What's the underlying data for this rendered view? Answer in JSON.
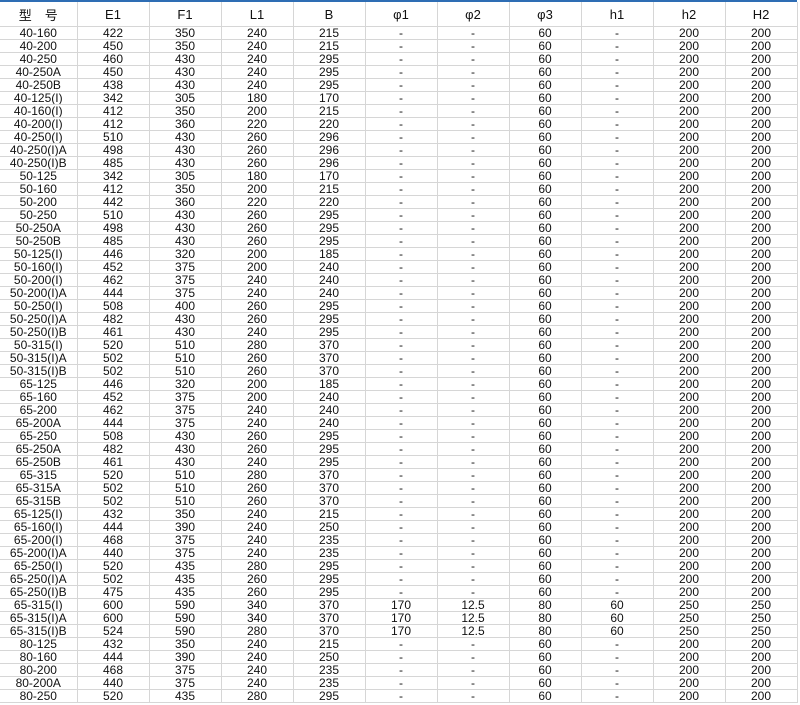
{
  "table": {
    "headers": [
      "型　号",
      "E1",
      "F1",
      "L1",
      "B",
      "φ1",
      "φ2",
      "φ3",
      "h1",
      "h2",
      "H2"
    ],
    "rows": [
      [
        "40-160",
        "422",
        "350",
        "240",
        "215",
        "-",
        "-",
        "60",
        "-",
        "200",
        "200"
      ],
      [
        "40-200",
        "450",
        "350",
        "240",
        "215",
        "-",
        "-",
        "60",
        "-",
        "200",
        "200"
      ],
      [
        "40-250",
        "460",
        "430",
        "240",
        "295",
        "-",
        "-",
        "60",
        "-",
        "200",
        "200"
      ],
      [
        "40-250A",
        "450",
        "430",
        "240",
        "295",
        "-",
        "-",
        "60",
        "-",
        "200",
        "200"
      ],
      [
        "40-250B",
        "438",
        "430",
        "240",
        "295",
        "-",
        "-",
        "60",
        "-",
        "200",
        "200"
      ],
      [
        "40-125(I)",
        "342",
        "305",
        "180",
        "170",
        "-",
        "-",
        "60",
        "-",
        "200",
        "200"
      ],
      [
        "40-160(I)",
        "412",
        "350",
        "200",
        "215",
        "-",
        "-",
        "60",
        "-",
        "200",
        "200"
      ],
      [
        "40-200(I)",
        "412",
        "360",
        "220",
        "220",
        "-",
        "-",
        "60",
        "-",
        "200",
        "200"
      ],
      [
        "40-250(I)",
        "510",
        "430",
        "260",
        "296",
        "-",
        "-",
        "60",
        "-",
        "200",
        "200"
      ],
      [
        "40-250(I)A",
        "498",
        "430",
        "260",
        "296",
        "-",
        "-",
        "60",
        "-",
        "200",
        "200"
      ],
      [
        "40-250(I)B",
        "485",
        "430",
        "260",
        "296",
        "-",
        "-",
        "60",
        "-",
        "200",
        "200"
      ],
      [
        "50-125",
        "342",
        "305",
        "180",
        "170",
        "-",
        "-",
        "60",
        "-",
        "200",
        "200"
      ],
      [
        "50-160",
        "412",
        "350",
        "200",
        "215",
        "-",
        "-",
        "60",
        "-",
        "200",
        "200"
      ],
      [
        "50-200",
        "442",
        "360",
        "220",
        "220",
        "-",
        "-",
        "60",
        "-",
        "200",
        "200"
      ],
      [
        "50-250",
        "510",
        "430",
        "260",
        "295",
        "-",
        "-",
        "60",
        "-",
        "200",
        "200"
      ],
      [
        "50-250A",
        "498",
        "430",
        "260",
        "295",
        "-",
        "-",
        "60",
        "-",
        "200",
        "200"
      ],
      [
        "50-250B",
        "485",
        "430",
        "260",
        "295",
        "-",
        "-",
        "60",
        "-",
        "200",
        "200"
      ],
      [
        "50-125(I)",
        "446",
        "320",
        "200",
        "185",
        "-",
        "-",
        "60",
        "-",
        "200",
        "200"
      ],
      [
        "50-160(I)",
        "452",
        "375",
        "200",
        "240",
        "-",
        "-",
        "60",
        "-",
        "200",
        "200"
      ],
      [
        "50-200(I)",
        "462",
        "375",
        "240",
        "240",
        "-",
        "-",
        "60",
        "-",
        "200",
        "200"
      ],
      [
        "50-200(I)A",
        "444",
        "375",
        "240",
        "240",
        "-",
        "-",
        "60",
        "-",
        "200",
        "200"
      ],
      [
        "50-250(I)",
        "508",
        "400",
        "260",
        "295",
        "-",
        "-",
        "60",
        "-",
        "200",
        "200"
      ],
      [
        "50-250(I)A",
        "482",
        "430",
        "260",
        "295",
        "-",
        "-",
        "60",
        "-",
        "200",
        "200"
      ],
      [
        "50-250(I)B",
        "461",
        "430",
        "240",
        "295",
        "-",
        "-",
        "60",
        "-",
        "200",
        "200"
      ],
      [
        "50-315(I)",
        "520",
        "510",
        "280",
        "370",
        "-",
        "-",
        "60",
        "-",
        "200",
        "200"
      ],
      [
        "50-315(I)A",
        "502",
        "510",
        "260",
        "370",
        "-",
        "-",
        "60",
        "-",
        "200",
        "200"
      ],
      [
        "50-315(I)B",
        "502",
        "510",
        "260",
        "370",
        "-",
        "-",
        "60",
        "-",
        "200",
        "200"
      ],
      [
        "65-125",
        "446",
        "320",
        "200",
        "185",
        "-",
        "-",
        "60",
        "-",
        "200",
        "200"
      ],
      [
        "65-160",
        "452",
        "375",
        "200",
        "240",
        "-",
        "-",
        "60",
        "-",
        "200",
        "200"
      ],
      [
        "65-200",
        "462",
        "375",
        "240",
        "240",
        "-",
        "-",
        "60",
        "-",
        "200",
        "200"
      ],
      [
        "65-200A",
        "444",
        "375",
        "240",
        "240",
        "-",
        "-",
        "60",
        "-",
        "200",
        "200"
      ],
      [
        "65-250",
        "508",
        "430",
        "260",
        "295",
        "-",
        "-",
        "60",
        "-",
        "200",
        "200"
      ],
      [
        "65-250A",
        "482",
        "430",
        "260",
        "295",
        "-",
        "-",
        "60",
        "-",
        "200",
        "200"
      ],
      [
        "65-250B",
        "461",
        "430",
        "240",
        "295",
        "-",
        "-",
        "60",
        "-",
        "200",
        "200"
      ],
      [
        "65-315",
        "520",
        "510",
        "280",
        "370",
        "-",
        "-",
        "60",
        "-",
        "200",
        "200"
      ],
      [
        "65-315A",
        "502",
        "510",
        "260",
        "370",
        "-",
        "-",
        "60",
        "-",
        "200",
        "200"
      ],
      [
        "65-315B",
        "502",
        "510",
        "260",
        "370",
        "-",
        "-",
        "60",
        "-",
        "200",
        "200"
      ],
      [
        "65-125(I)",
        "432",
        "350",
        "240",
        "215",
        "-",
        "-",
        "60",
        "-",
        "200",
        "200"
      ],
      [
        "65-160(I)",
        "444",
        "390",
        "240",
        "250",
        "-",
        "-",
        "60",
        "-",
        "200",
        "200"
      ],
      [
        "65-200(I)",
        "468",
        "375",
        "240",
        "235",
        "-",
        "-",
        "60",
        "-",
        "200",
        "200"
      ],
      [
        "65-200(I)A",
        "440",
        "375",
        "240",
        "235",
        "-",
        "-",
        "60",
        "-",
        "200",
        "200"
      ],
      [
        "65-250(I)",
        "520",
        "435",
        "280",
        "295",
        "-",
        "-",
        "60",
        "-",
        "200",
        "200"
      ],
      [
        "65-250(I)A",
        "502",
        "435",
        "260",
        "295",
        "-",
        "-",
        "60",
        "-",
        "200",
        "200"
      ],
      [
        "65-250(I)B",
        "475",
        "435",
        "260",
        "295",
        "-",
        "-",
        "60",
        "-",
        "200",
        "200"
      ],
      [
        "65-315(I)",
        "600",
        "590",
        "340",
        "370",
        "170",
        "12.5",
        "80",
        "60",
        "250",
        "250"
      ],
      [
        "65-315(I)A",
        "600",
        "590",
        "340",
        "370",
        "170",
        "12.5",
        "80",
        "60",
        "250",
        "250"
      ],
      [
        "65-315(I)B",
        "524",
        "590",
        "280",
        "370",
        "170",
        "12.5",
        "80",
        "60",
        "250",
        "250"
      ],
      [
        "80-125",
        "432",
        "350",
        "240",
        "215",
        "-",
        "-",
        "60",
        "-",
        "200",
        "200"
      ],
      [
        "80-160",
        "444",
        "390",
        "240",
        "250",
        "-",
        "-",
        "60",
        "-",
        "200",
        "200"
      ],
      [
        "80-200",
        "468",
        "375",
        "240",
        "235",
        "-",
        "-",
        "60",
        "-",
        "200",
        "200"
      ],
      [
        "80-200A",
        "440",
        "375",
        "240",
        "235",
        "-",
        "-",
        "60",
        "-",
        "200",
        "200"
      ],
      [
        "80-250",
        "520",
        "435",
        "280",
        "295",
        "-",
        "-",
        "60",
        "-",
        "200",
        "200"
      ]
    ]
  },
  "colors": {
    "top_border": "#2e6db4",
    "grid": "#d6d6d6"
  }
}
